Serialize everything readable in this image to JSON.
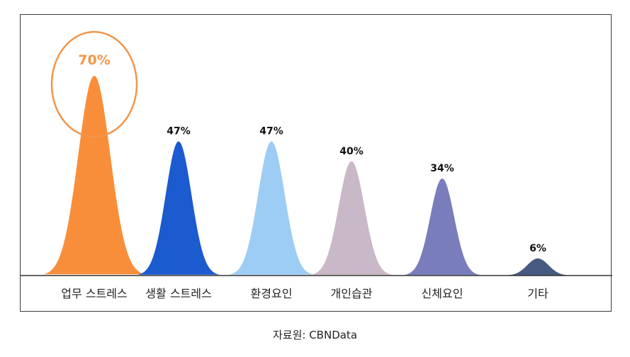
{
  "chart_data": {
    "type": "bar",
    "style": "bell-shaped peaks",
    "categories": [
      "업무 스트레스",
      "생활 스트레스",
      "환경요인",
      "개인습관",
      "신체요인",
      "기타"
    ],
    "values": [
      70,
      47,
      47,
      40,
      34,
      6
    ],
    "value_labels": [
      "70%",
      "47%",
      "47%",
      "40%",
      "34%",
      "6%"
    ],
    "colors": [
      "#F98E3A",
      "#1C5ACF",
      "#9DCDF4",
      "#C9B8C8",
      "#7A7DBC",
      "#475A80"
    ],
    "highlight_color": "#F3954A",
    "highlighted_category": "업무 스트레스",
    "title": "",
    "xlabel": "",
    "ylabel": "",
    "ylim": [
      0,
      70
    ],
    "grid": false,
    "legend": "none"
  },
  "source": "자료원: CBNData"
}
